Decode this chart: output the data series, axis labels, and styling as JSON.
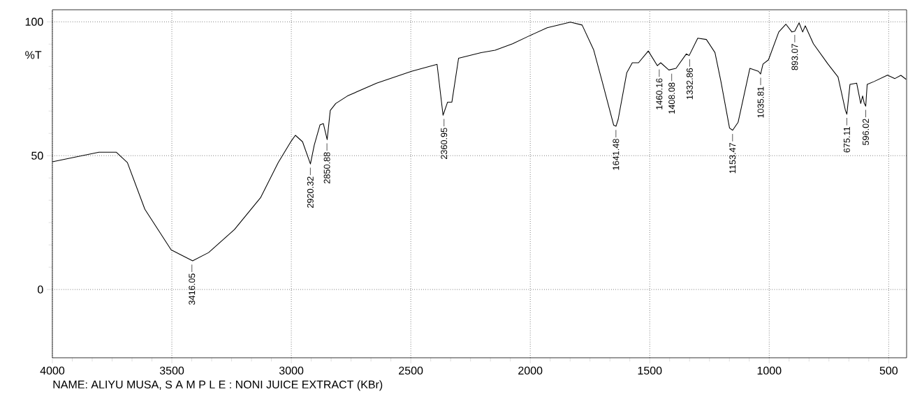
{
  "chart_data": {
    "type": "line",
    "ylabel": "%T",
    "color": "#000000",
    "grid": true,
    "line_style": "solid",
    "marker": "none",
    "xlim": [
      4000,
      425
    ],
    "ylim": [
      -25.5,
      104.5
    ],
    "xticks": [
      4000,
      3500,
      3000,
      2500,
      2000,
      1500,
      1000,
      500
    ],
    "yticks": [
      0,
      50,
      100
    ],
    "x": [
      4000,
      3805,
      3733,
      3686,
      3613,
      3503,
      3413,
      3346,
      3238,
      3128,
      3055,
      3000,
      2983,
      2953,
      2920,
      2904,
      2880,
      2866,
      2850,
      2837,
      2814,
      2765,
      2643,
      2497,
      2390,
      2365,
      2346,
      2328,
      2300,
      2206,
      2147,
      2074,
      2010,
      1929,
      1832,
      1783,
      1735,
      1699,
      1651,
      1641,
      1632,
      1596,
      1573,
      1547,
      1506,
      1468,
      1454,
      1420,
      1390,
      1347,
      1335,
      1299,
      1263,
      1227,
      1202,
      1166,
      1153,
      1130,
      1081,
      1045,
      1036,
      1026,
      1003,
      960,
      930,
      905,
      893,
      875,
      860,
      849,
      815,
      754,
      712,
      681,
      675,
      662,
      634,
      617,
      609,
      602,
      596,
      590,
      561,
      505,
      474,
      449,
      427
    ],
    "values": [
      47.7,
      51.3,
      51.3,
      47.4,
      30,
      14.8,
      10.7,
      13.8,
      22.4,
      34.4,
      47.4,
      55.5,
      57.6,
      55.2,
      46.9,
      53.9,
      61.5,
      62,
      56,
      66.9,
      69.5,
      72.3,
      77.1,
      81.5,
      84.1,
      65.1,
      70,
      70,
      86.4,
      88.5,
      89.4,
      91.8,
      94.5,
      97.8,
      99.9,
      98.8,
      89.6,
      77.7,
      61.4,
      61,
      63.6,
      81,
      84.7,
      84.7,
      89.1,
      83.6,
      84.7,
      82,
      82.6,
      88,
      87.4,
      93.9,
      93.4,
      88.5,
      77.7,
      60.3,
      59.5,
      62.5,
      82.6,
      81.5,
      80.5,
      84.2,
      85.8,
      96.2,
      99.1,
      96.2,
      96.5,
      99.6,
      96.2,
      98.5,
      91.8,
      84.2,
      79.4,
      66.9,
      65.5,
      76.6,
      77.1,
      69.5,
      72.3,
      69.5,
      68.5,
      76.6,
      77.7,
      80.1,
      78.8,
      80,
      78.5
    ],
    "annotations": [
      {
        "text": "3416.05",
        "x": 3416.05,
        "y": 10.7
      },
      {
        "text": "2920.32",
        "x": 2920.32,
        "y": 46.9
      },
      {
        "text": "2850.88",
        "x": 2850.88,
        "y": 56
      },
      {
        "text": "2360.95",
        "x": 2360.95,
        "y": 65.1
      },
      {
        "text": "1641.48",
        "x": 1641.48,
        "y": 61
      },
      {
        "text": "1460.16",
        "x": 1460.16,
        "y": 83.6
      },
      {
        "text": "1408.08",
        "x": 1408.08,
        "y": 82
      },
      {
        "text": "1332.86",
        "x": 1332.86,
        "y": 87.4
      },
      {
        "text": "1153.47",
        "x": 1153.47,
        "y": 59.5
      },
      {
        "text": "1035.81",
        "x": 1035.81,
        "y": 80.5
      },
      {
        "text": "893.07",
        "x": 893.07,
        "y": 96.5
      },
      {
        "text": "675.11",
        "x": 675.11,
        "y": 65.5
      },
      {
        "text": "596.02",
        "x": 596.02,
        "y": 68.5
      },
      "NAME: ALIYU MUSA,  S A M P L E : NONI JUICE EXTRACT (KBr)"
    ]
  }
}
